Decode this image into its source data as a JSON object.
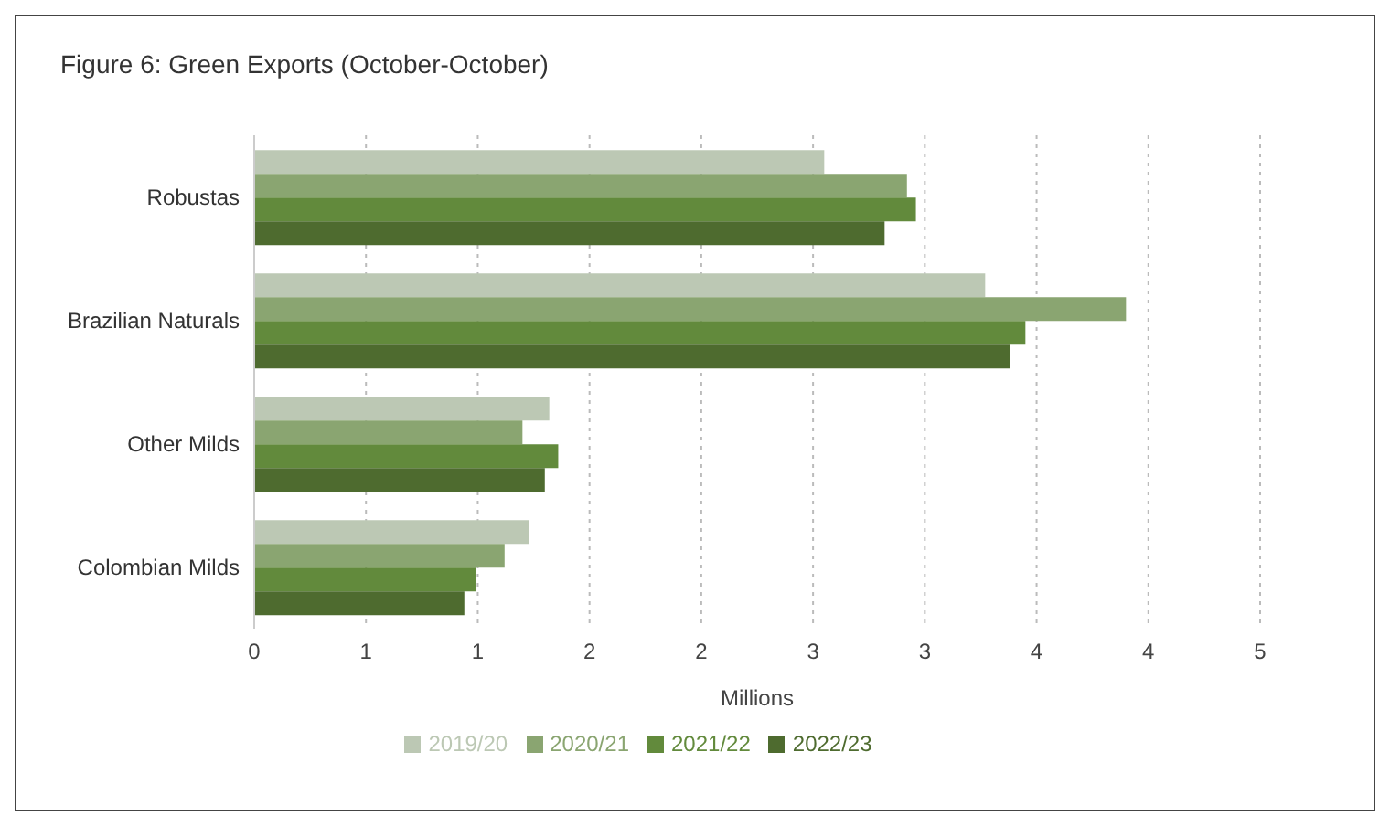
{
  "chart_data": {
    "type": "bar",
    "orientation": "horizontal",
    "title": "Figure 6: Green Exports (October-October)",
    "xlabel": "Millions",
    "categories": [
      "Robustas",
      "Brazilian Naturals",
      "Other Milds",
      "Colombian Milds"
    ],
    "series": [
      {
        "name": "2019/20",
        "color": "#bcc8b4",
        "values": [
          2.55,
          3.27,
          1.32,
          1.23
        ]
      },
      {
        "name": "2020/21",
        "color": "#8aa571",
        "values": [
          2.92,
          3.9,
          1.2,
          1.12
        ]
      },
      {
        "name": "2021/22",
        "color": "#628a3c",
        "values": [
          2.96,
          3.45,
          1.36,
          0.99
        ]
      },
      {
        "name": "2022/23",
        "color": "#4e6b2f",
        "values": [
          2.82,
          3.38,
          1.3,
          0.94
        ]
      }
    ],
    "xlim": [
      0,
      4.5
    ],
    "xticks": [
      0,
      {
        "value": 0.5,
        "label": "1"
      },
      1,
      {
        "value": 1.5,
        "label": "2"
      },
      2,
      {
        "value": 2.5,
        "label": "3"
      },
      3,
      {
        "value": 3.5,
        "label": "4"
      },
      4,
      {
        "value": 4.5,
        "label": "5"
      }
    ],
    "grid": "x",
    "legend": "bottom"
  }
}
